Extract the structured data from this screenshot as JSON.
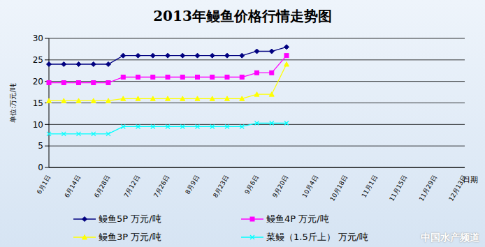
{
  "chart_data": {
    "type": "line",
    "title": "2013年鳗鱼价格行情走势图",
    "y_label": "单位:万元/吨",
    "x_label": "日期",
    "source": "中国水产频道",
    "categories": [
      "6月1日",
      null,
      "6月14日",
      null,
      "6月28日",
      null,
      "7月12日",
      null,
      "7月26日",
      null,
      "8月9日",
      null,
      "8月23日",
      null,
      "9月6日",
      null,
      "9月20日",
      null,
      "10月4日",
      null,
      "10月18日",
      null,
      "11月1日",
      null,
      "11月15日",
      null,
      "11月29日",
      null,
      "12月13日"
    ],
    "series": [
      {
        "name": "鳗鱼5P 万元/吨",
        "color": "#000080",
        "marker": "diamond",
        "values": [
          24,
          24,
          24,
          24,
          24,
          26,
          26,
          26,
          26,
          26,
          26,
          26,
          26,
          26,
          27,
          27,
          28,
          null,
          null,
          null,
          null,
          null,
          null,
          null,
          null,
          null,
          null,
          null,
          null
        ]
      },
      {
        "name": "鳗鱼4P 万元/吨",
        "color": "#ff00ff",
        "marker": "square",
        "values": [
          19.7,
          19.7,
          19.7,
          19.7,
          19.7,
          21,
          21,
          21,
          21,
          21,
          21,
          21,
          21,
          21,
          22,
          22,
          26,
          null,
          null,
          null,
          null,
          null,
          null,
          null,
          null,
          null,
          null,
          null,
          null
        ]
      },
      {
        "name": "鳗鱼3P 万元/吨",
        "color": "#ffff00",
        "marker": "triangle",
        "values": [
          15.5,
          15.5,
          15.5,
          15.5,
          15.5,
          16,
          16,
          16,
          16,
          16,
          16,
          16,
          16,
          16,
          17,
          17,
          24,
          null,
          null,
          null,
          null,
          null,
          null,
          null,
          null,
          null,
          null,
          null,
          null
        ]
      },
      {
        "name": "菜鳗（1.5斤上） 万元/吨",
        "color": "#00ffff",
        "marker": "x",
        "values": [
          7.8,
          7.8,
          7.8,
          7.8,
          7.8,
          9.5,
          9.5,
          9.5,
          9.5,
          9.5,
          9.5,
          9.5,
          9.5,
          9.5,
          10.3,
          10.3,
          10.3,
          null,
          null,
          null,
          null,
          null,
          null,
          null,
          null,
          null,
          null,
          null,
          null
        ]
      }
    ],
    "ylim": [
      0,
      30
    ],
    "yticks": [
      0,
      5,
      10,
      15,
      20,
      25,
      30
    ],
    "grid": true,
    "legend": "bottom"
  }
}
